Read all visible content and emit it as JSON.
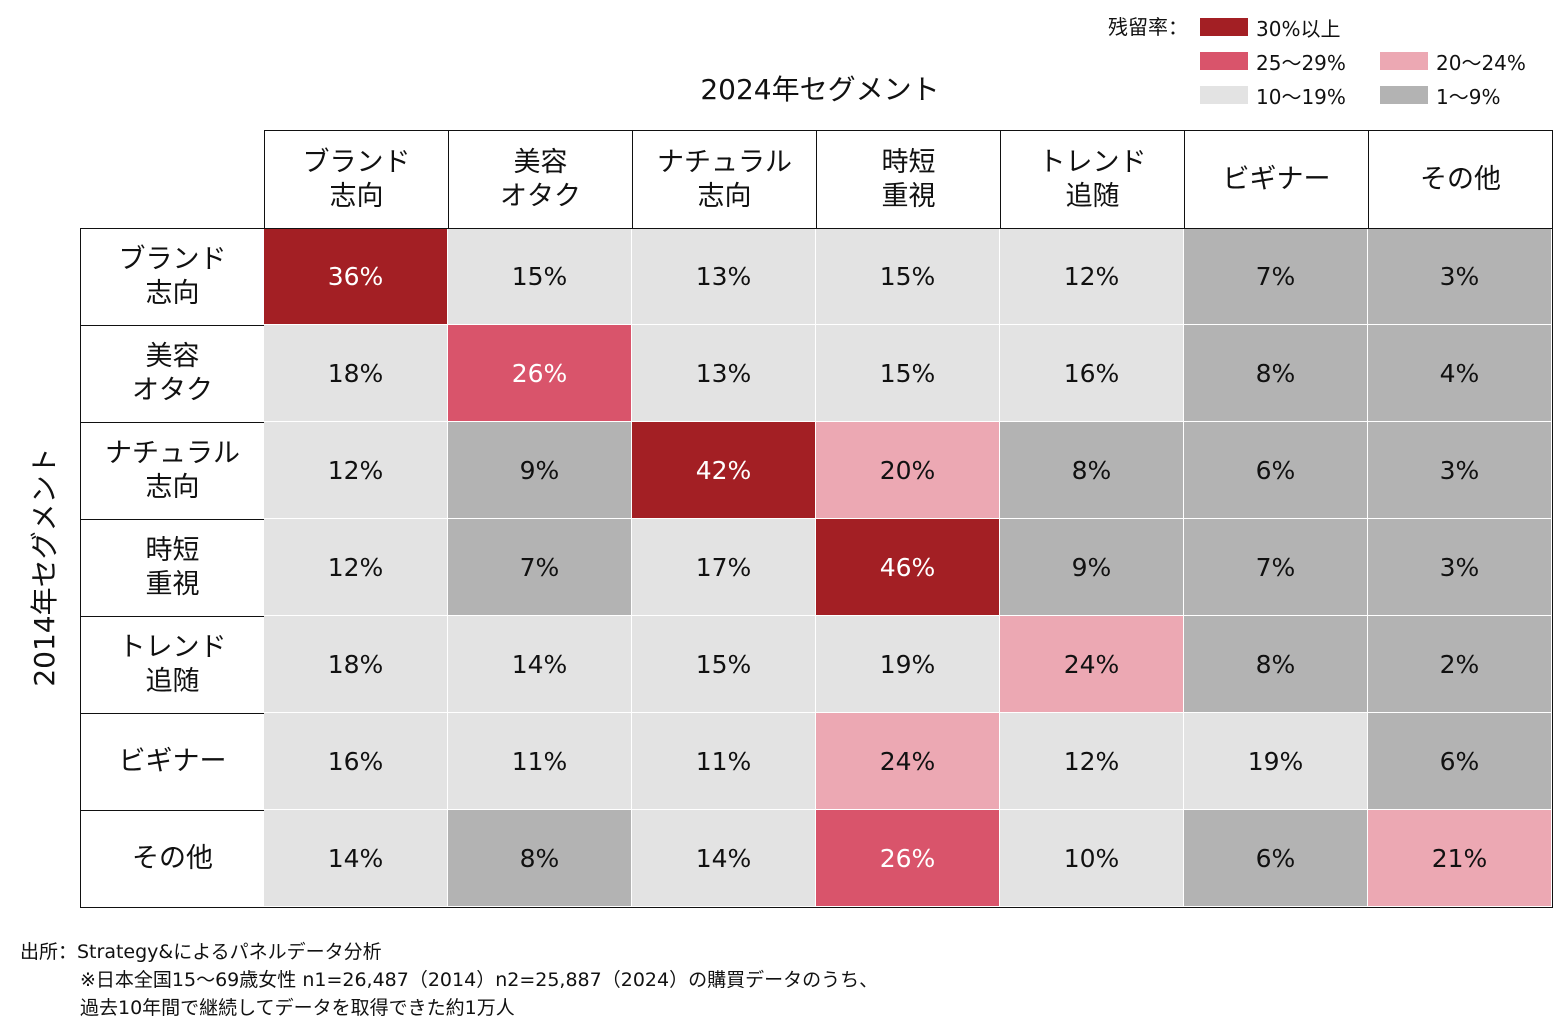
{
  "legend": {
    "title": "残留率：",
    "items": [
      {
        "label": "30%以上",
        "color": "#a31f24"
      },
      {
        "label": "25〜29%",
        "color": "#d9546b"
      },
      {
        "label": "20〜24%",
        "color": "#eca8b3"
      },
      {
        "label": "10〜19%",
        "color": "#e3e3e3"
      },
      {
        "label": "1〜9%",
        "color": "#b3b3b3"
      }
    ]
  },
  "chart_data": {
    "type": "heatmap",
    "title": "2024年セグメント",
    "xlabel": "2024年セグメント",
    "ylabel": "2014年セグメント",
    "columns": [
      "ブランド\n志向",
      "美容\nオタク",
      "ナチュラル\n志向",
      "時短\n重視",
      "トレンド\n追随",
      "ビギナー",
      "その他"
    ],
    "rows": [
      "ブランド\n志向",
      "美容\nオタク",
      "ナチュラル\n志向",
      "時短\n重視",
      "トレンド\n追随",
      "ビギナー",
      "その他"
    ],
    "unit": "%",
    "values": [
      [
        36,
        15,
        13,
        15,
        12,
        7,
        3
      ],
      [
        18,
        26,
        13,
        15,
        16,
        8,
        4
      ],
      [
        12,
        9,
        42,
        20,
        8,
        6,
        3
      ],
      [
        12,
        7,
        17,
        46,
        9,
        7,
        3
      ],
      [
        18,
        14,
        15,
        19,
        24,
        8,
        2
      ],
      [
        16,
        11,
        11,
        24,
        12,
        19,
        6
      ],
      [
        14,
        8,
        14,
        26,
        10,
        6,
        21
      ]
    ]
  },
  "source": {
    "line1": "出所：Strategy&によるパネルデータ分析",
    "line2": "※日本全国15〜69歳女性 n1=26,487（2014）n2=25,887（2024）の購買データのうち、",
    "line3": "過去10年間で継続してデータを取得できた約1万人"
  }
}
